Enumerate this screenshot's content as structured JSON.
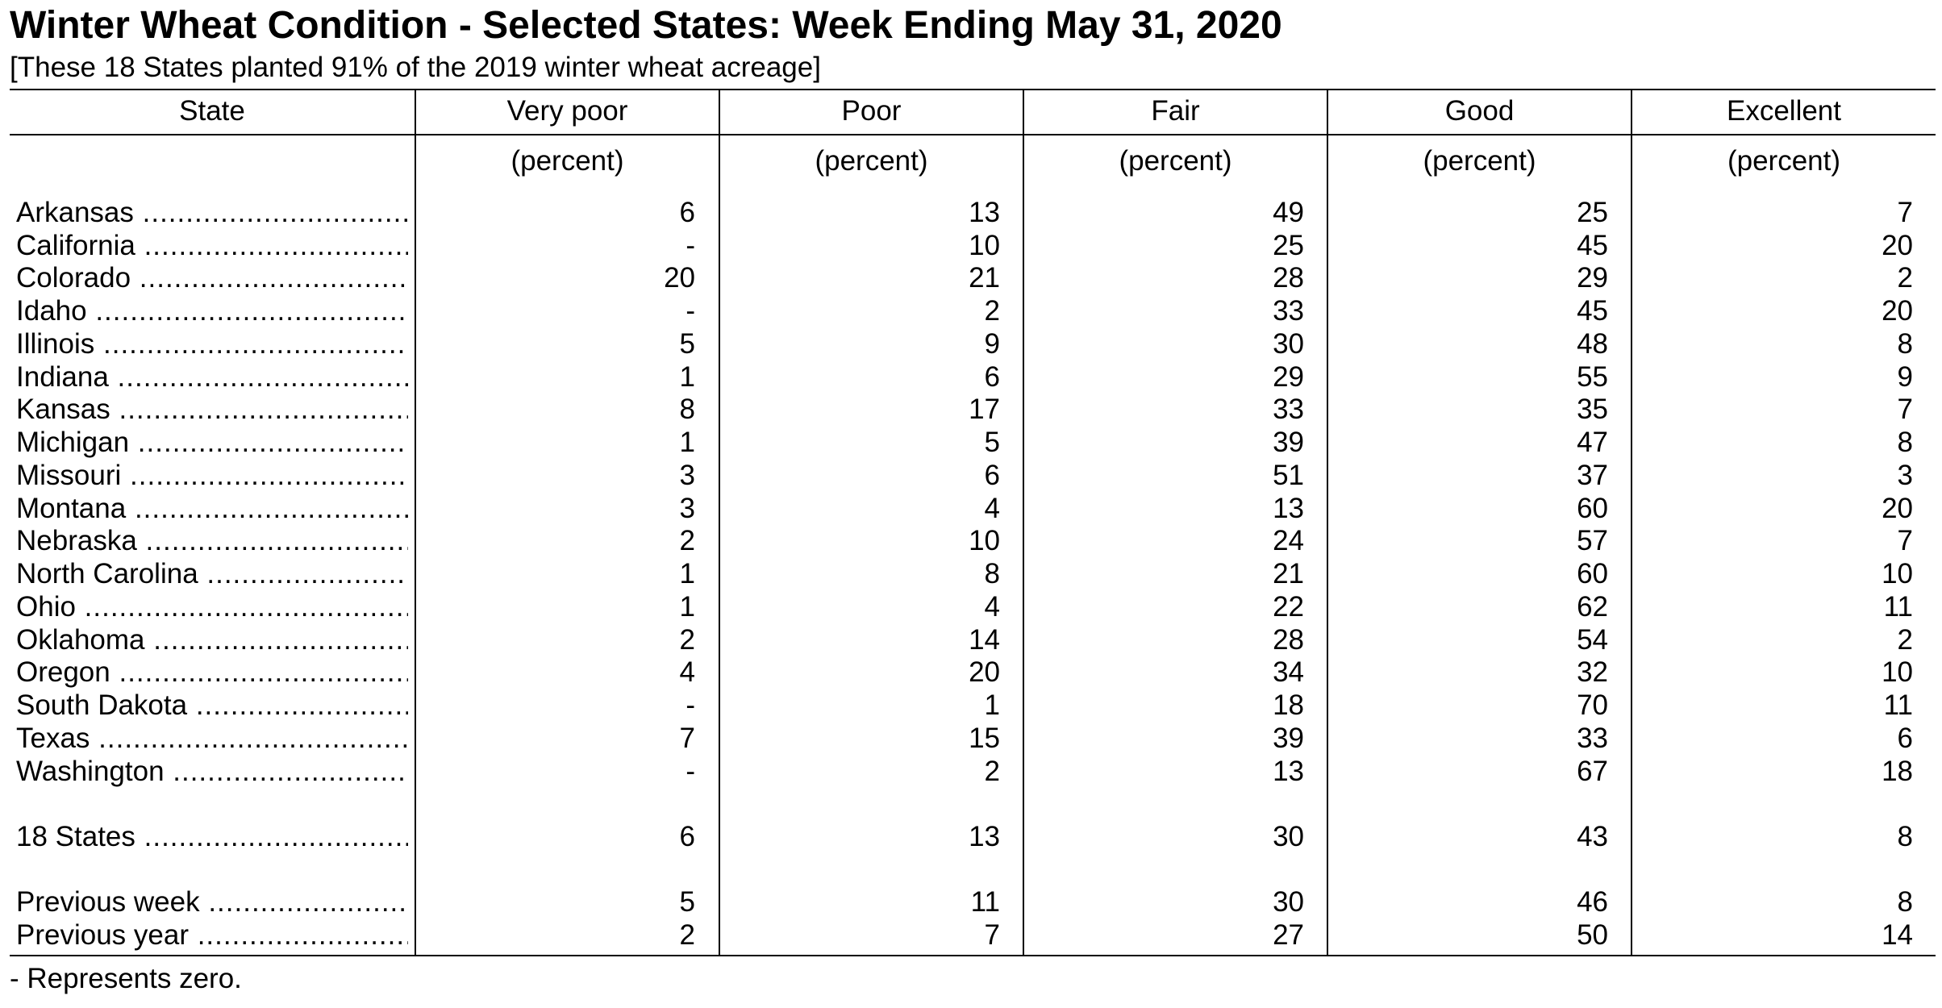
{
  "title": "Winter Wheat Condition - Selected States: Week Ending May 31, 2020",
  "subtitle": "[These 18 States planted 91% of the 2019 winter wheat acreage]",
  "columns": [
    "State",
    "Very poor",
    "Poor",
    "Fair",
    "Good",
    "Excellent"
  ],
  "unit": "(percent)",
  "rows": [
    {
      "state": "Arkansas",
      "values": [
        "6",
        "13",
        "49",
        "25",
        "7"
      ]
    },
    {
      "state": "California",
      "values": [
        "-",
        "10",
        "25",
        "45",
        "20"
      ]
    },
    {
      "state": "Colorado",
      "values": [
        "20",
        "21",
        "28",
        "29",
        "2"
      ]
    },
    {
      "state": "Idaho",
      "values": [
        "-",
        "2",
        "33",
        "45",
        "20"
      ]
    },
    {
      "state": "Illinois",
      "values": [
        "5",
        "9",
        "30",
        "48",
        "8"
      ]
    },
    {
      "state": "Indiana",
      "values": [
        "1",
        "6",
        "29",
        "55",
        "9"
      ]
    },
    {
      "state": "Kansas",
      "values": [
        "8",
        "17",
        "33",
        "35",
        "7"
      ]
    },
    {
      "state": "Michigan",
      "values": [
        "1",
        "5",
        "39",
        "47",
        "8"
      ]
    },
    {
      "state": "Missouri",
      "values": [
        "3",
        "6",
        "51",
        "37",
        "3"
      ]
    },
    {
      "state": "Montana",
      "values": [
        "3",
        "4",
        "13",
        "60",
        "20"
      ]
    },
    {
      "state": "Nebraska",
      "values": [
        "2",
        "10",
        "24",
        "57",
        "7"
      ]
    },
    {
      "state": "North Carolina",
      "values": [
        "1",
        "8",
        "21",
        "60",
        "10"
      ]
    },
    {
      "state": "Ohio",
      "values": [
        "1",
        "4",
        "22",
        "62",
        "11"
      ]
    },
    {
      "state": "Oklahoma",
      "values": [
        "2",
        "14",
        "28",
        "54",
        "2"
      ]
    },
    {
      "state": "Oregon",
      "values": [
        "4",
        "20",
        "34",
        "32",
        "10"
      ]
    },
    {
      "state": "South Dakota",
      "values": [
        "-",
        "1",
        "18",
        "70",
        "11"
      ]
    },
    {
      "state": "Texas",
      "values": [
        "7",
        "15",
        "39",
        "33",
        "6"
      ]
    },
    {
      "state": "Washington",
      "values": [
        "-",
        "2",
        "13",
        "67",
        "18"
      ]
    }
  ],
  "total": {
    "state": "18 States",
    "values": [
      "6",
      "13",
      "30",
      "43",
      "8"
    ]
  },
  "comparisons": [
    {
      "state": "Previous week",
      "values": [
        "5",
        "11",
        "30",
        "46",
        "8"
      ]
    },
    {
      "state": "Previous year",
      "values": [
        "2",
        "7",
        "27",
        "50",
        "14"
      ]
    }
  ],
  "footnote": "- Represents zero."
}
